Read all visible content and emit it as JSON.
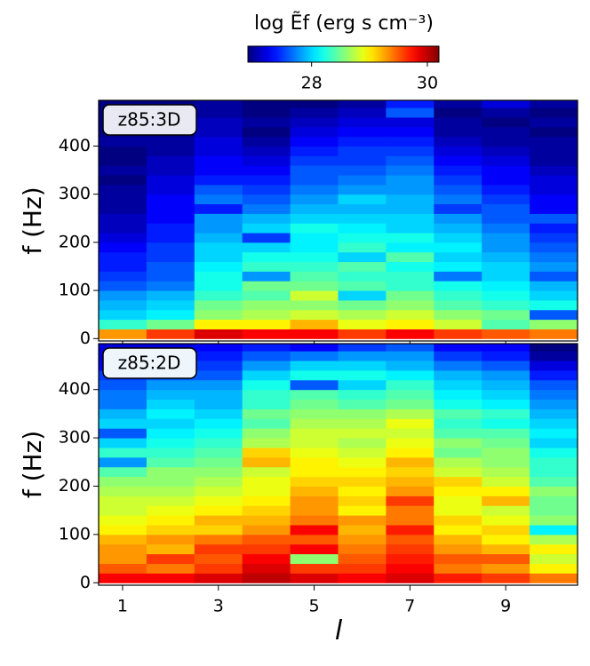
{
  "chart_data": {
    "type": "heatmap",
    "colorbar": {
      "label": "log Ẽf (erg s cm⁻³)",
      "clim": [
        26.9,
        30.2
      ],
      "ticks": [
        28,
        30
      ],
      "colormap": "jet"
    },
    "xlabel": "l",
    "x": [
      1,
      2,
      3,
      4,
      5,
      6,
      7,
      8,
      9,
      10
    ],
    "xlim": [
      0.5,
      10.5
    ],
    "xticks": [
      1,
      3,
      5,
      7,
      9
    ],
    "y_bins": [
      0,
      20,
      40,
      60,
      80,
      100,
      120,
      140,
      160,
      180,
      200,
      220,
      240,
      260,
      280,
      300,
      320,
      340,
      360,
      380,
      400,
      420,
      440,
      460,
      480,
      500
    ],
    "panels": [
      {
        "label": "z85:3D",
        "ylabel": "f (Hz)",
        "ylim": [
          -5,
          495
        ],
        "yticks": [
          0,
          100,
          200,
          300,
          400
        ],
        "values": [
          [
            29.3,
            28.3,
            28.0,
            27.9,
            27.8,
            27.6,
            27.5,
            27.4,
            27.4,
            27.3,
            27.2,
            27.1,
            27.1,
            27.0,
            27.0,
            27.0,
            26.9,
            27.0,
            26.9,
            26.9,
            27.0,
            26.9,
            26.9,
            26.9,
            26.9
          ],
          [
            29.6,
            28.5,
            28.1,
            28.0,
            27.9,
            27.7,
            27.6,
            27.6,
            27.5,
            27.5,
            27.4,
            27.4,
            27.3,
            27.3,
            27.3,
            27.2,
            27.2,
            27.1,
            27.1,
            27.0,
            27.0,
            26.9,
            27.0,
            26.9,
            26.9
          ],
          [
            29.9,
            29.0,
            28.6,
            28.5,
            28.3,
            28.2,
            28.2,
            28.1,
            28.0,
            28.0,
            27.9,
            27.8,
            27.8,
            27.4,
            27.7,
            27.6,
            27.4,
            27.3,
            27.3,
            27.2,
            27.2,
            27.1,
            27.1,
            27.0,
            27.0
          ],
          [
            29.8,
            29.0,
            28.7,
            28.6,
            28.4,
            28.5,
            27.8,
            28.3,
            28.2,
            28.0,
            27.5,
            28.0,
            27.9,
            27.7,
            27.6,
            27.5,
            27.4,
            27.3,
            27.2,
            27.1,
            27.0,
            26.9,
            27.0,
            26.9,
            26.9
          ],
          [
            29.8,
            29.2,
            28.8,
            28.6,
            28.8,
            28.5,
            28.4,
            28.3,
            28.2,
            28.1,
            28.1,
            28.2,
            28.0,
            27.9,
            27.8,
            27.7,
            27.6,
            27.6,
            27.5,
            27.4,
            27.3,
            27.2,
            27.1,
            27.0,
            26.9
          ],
          [
            29.6,
            28.9,
            28.7,
            28.5,
            28.0,
            28.4,
            28.3,
            28.4,
            28.0,
            28.3,
            28.2,
            28.1,
            28.0,
            27.9,
            28.0,
            27.8,
            27.7,
            27.6,
            27.5,
            27.5,
            27.4,
            27.3,
            27.2,
            27.1,
            27.0
          ],
          [
            29.8,
            29.0,
            28.8,
            28.6,
            28.5,
            28.3,
            28.3,
            28.2,
            28.4,
            28.1,
            28.2,
            28.0,
            28.0,
            27.9,
            27.9,
            27.8,
            27.8,
            27.7,
            27.6,
            27.5,
            27.4,
            27.3,
            27.2,
            27.6,
            27.4
          ],
          [
            29.6,
            28.8,
            28.6,
            28.4,
            28.3,
            28.2,
            27.7,
            28.1,
            28.0,
            28.1,
            28.0,
            27.9,
            27.8,
            27.5,
            27.7,
            27.6,
            27.5,
            27.4,
            27.3,
            27.2,
            27.1,
            27.0,
            27.0,
            26.9,
            27.0
          ],
          [
            29.5,
            28.4,
            28.5,
            28.3,
            28.2,
            28.1,
            28.0,
            28.0,
            27.9,
            27.8,
            27.8,
            27.7,
            27.6,
            27.6,
            27.5,
            27.4,
            27.3,
            27.3,
            27.2,
            27.1,
            27.0,
            27.0,
            26.9,
            27.0,
            27.2
          ],
          [
            29.4,
            28.6,
            27.6,
            28.2,
            28.0,
            27.9,
            27.6,
            27.8,
            27.7,
            27.6,
            27.5,
            27.4,
            27.6,
            27.3,
            27.3,
            27.2,
            27.2,
            27.1,
            27.0,
            27.0,
            27.0,
            26.9,
            27.0,
            26.9,
            27.0
          ]
        ]
      },
      {
        "label": "z85:2D",
        "ylabel": "f (Hz)",
        "ylim": [
          -5,
          495
        ],
        "yticks": [
          0,
          100,
          200,
          300,
          400
        ],
        "values": [
          [
            29.8,
            29.5,
            29.3,
            29.3,
            29.2,
            29.0,
            28.9,
            28.8,
            28.8,
            28.7,
            28.6,
            28.4,
            27.8,
            28.3,
            28.0,
            27.6,
            28.0,
            27.9,
            27.7,
            27.7,
            27.6,
            27.5,
            27.3,
            27.2,
            27.2
          ],
          [
            29.8,
            29.4,
            29.6,
            29.2,
            29.3,
            29.1,
            29.0,
            28.9,
            28.8,
            28.7,
            28.6,
            28.6,
            28.4,
            28.3,
            28.2,
            28.1,
            28.0,
            28.1,
            28.0,
            27.9,
            27.8,
            27.6,
            27.4,
            27.3,
            27.2
          ],
          [
            29.9,
            29.6,
            29.5,
            29.6,
            29.4,
            29.1,
            29.2,
            29.0,
            28.9,
            28.8,
            28.7,
            28.6,
            28.5,
            28.4,
            28.3,
            28.2,
            28.1,
            28.0,
            27.9,
            27.9,
            27.8,
            27.6,
            27.5,
            27.4,
            27.3
          ],
          [
            30.0,
            29.9,
            29.8,
            29.6,
            29.5,
            29.3,
            29.2,
            29.1,
            29.0,
            28.9,
            28.9,
            28.8,
            29.2,
            29.1,
            28.7,
            28.6,
            28.4,
            28.5,
            28.3,
            28.3,
            28.2,
            28.0,
            27.8,
            27.6,
            27.4
          ],
          [
            29.9,
            29.6,
            28.6,
            29.8,
            29.5,
            29.8,
            29.4,
            29.3,
            29.3,
            29.2,
            29.1,
            29.0,
            29.0,
            28.9,
            28.8,
            28.8,
            28.7,
            28.6,
            28.5,
            28.4,
            27.6,
            28.2,
            28.0,
            27.7,
            27.3
          ],
          [
            29.8,
            29.6,
            29.5,
            29.4,
            29.3,
            29.2,
            29.3,
            29.0,
            29.1,
            29.0,
            29.1,
            29.0,
            28.9,
            28.8,
            28.7,
            28.8,
            28.7,
            28.6,
            28.4,
            28.3,
            28.0,
            28.2,
            28.0,
            27.8,
            27.5
          ],
          [
            29.9,
            29.8,
            29.7,
            29.6,
            29.5,
            29.7,
            29.4,
            29.4,
            29.6,
            29.3,
            29.2,
            29.1,
            29.2,
            29.0,
            28.9,
            28.8,
            28.9,
            28.7,
            28.5,
            28.4,
            28.3,
            28.1,
            27.9,
            27.8,
            27.6
          ],
          [
            29.7,
            29.4,
            29.5,
            29.3,
            29.2,
            29.0,
            29.1,
            28.9,
            28.9,
            29.0,
            29.1,
            28.8,
            28.7,
            28.5,
            28.6,
            28.4,
            28.3,
            28.4,
            28.2,
            28.1,
            28.0,
            27.9,
            27.7,
            27.5,
            27.3
          ],
          [
            29.6,
            29.3,
            29.5,
            29.2,
            29.0,
            29.1,
            28.9,
            28.8,
            29.2,
            29.0,
            28.8,
            28.7,
            28.6,
            28.6,
            28.5,
            28.4,
            28.2,
            28.3,
            28.1,
            28.0,
            27.9,
            27.8,
            27.6,
            27.4,
            27.3
          ],
          [
            29.4,
            29.0,
            28.8,
            29.0,
            28.7,
            28.1,
            28.6,
            28.5,
            28.5,
            28.6,
            28.4,
            28.3,
            28.3,
            28.2,
            28.0,
            28.1,
            28.0,
            27.9,
            27.8,
            27.7,
            27.6,
            27.4,
            27.2,
            27.0,
            26.9
          ]
        ]
      }
    ]
  }
}
